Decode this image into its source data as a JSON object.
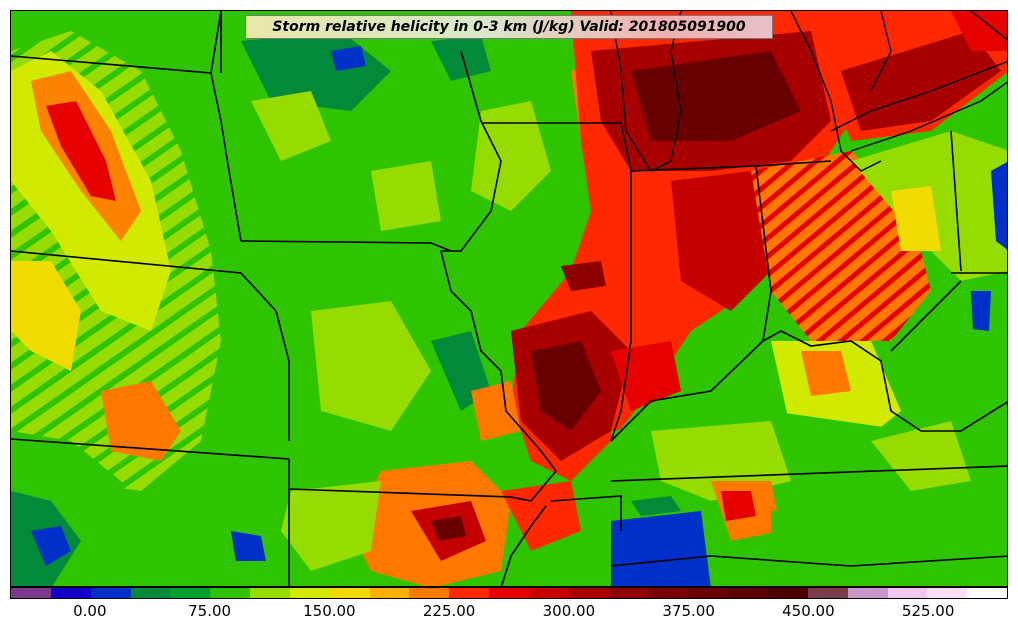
{
  "title": "Storm relative helicity in 0-3 km (J/kg) Valid: 201805091900",
  "colorbar": {
    "tick_labels": [
      "0.00",
      "75.00",
      "150.00",
      "225.00",
      "300.00",
      "375.00",
      "450.00",
      "525.00"
    ],
    "tick_values": [
      0,
      75,
      150,
      225,
      300,
      375,
      450,
      525
    ],
    "range": [
      -50,
      575
    ],
    "step": 25,
    "colors": [
      "#7b3a8e",
      "#1400c8",
      "#0030c8",
      "#008a3a",
      "#00a030",
      "#2ec400",
      "#96dc00",
      "#d2ea00",
      "#f0dc00",
      "#ffb000",
      "#ff7800",
      "#ff2800",
      "#e60000",
      "#c40000",
      "#a80000",
      "#8c0000",
      "#780000",
      "#680000",
      "#5a0000",
      "#4e0000",
      "#7a3c4a",
      "#c896c8",
      "#f0c8f0",
      "#f8e0f8",
      "#ffffff"
    ]
  },
  "map_colors": {
    "border": "#000000",
    "background_field": "#2ec400"
  }
}
